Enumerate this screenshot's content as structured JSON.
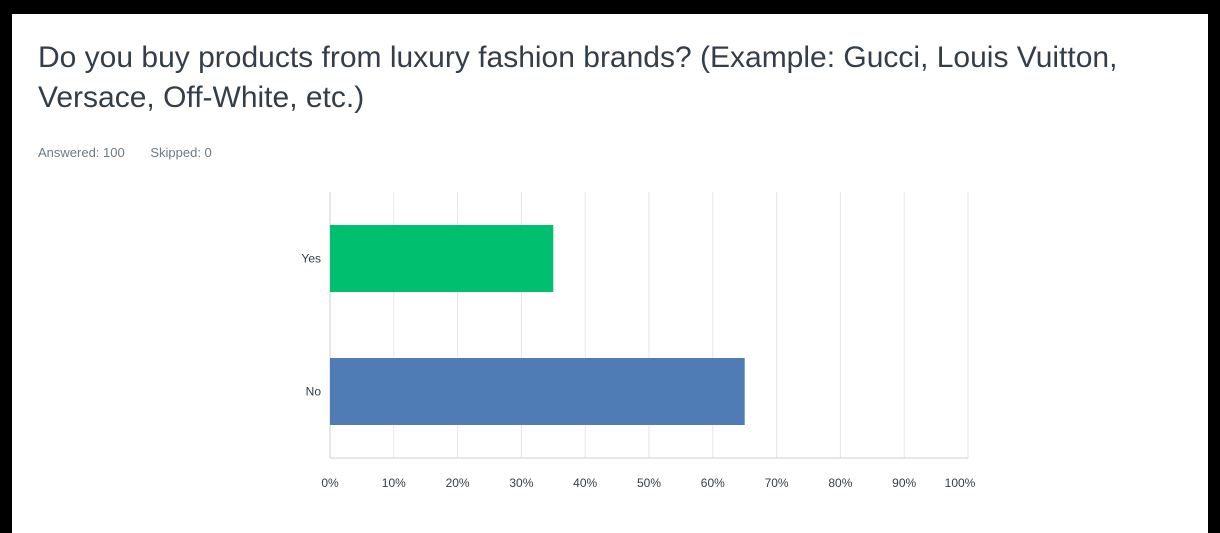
{
  "question": {
    "title": "Do you buy products from luxury fashion brands? (Example: Gucci, Louis Vuitton, Versace, Off-White, etc.)",
    "answered_label": "Answered: 100",
    "skipped_label": "Skipped: 0"
  },
  "colors": {
    "yes_bar": "#00bf6f",
    "no_bar": "#507cb6",
    "grid": "#e6e6e6",
    "axis": "#cfcfcf"
  },
  "chart_data": {
    "type": "bar",
    "orientation": "horizontal",
    "categories": [
      "Yes",
      "No"
    ],
    "values": [
      35,
      65
    ],
    "unit": "%",
    "xlim": [
      0,
      100
    ],
    "x_ticks": [
      "0%",
      "10%",
      "20%",
      "30%",
      "40%",
      "50%",
      "60%",
      "70%",
      "80%",
      "90%",
      "100%"
    ],
    "grid": true,
    "title": "",
    "xlabel": "",
    "ylabel": ""
  }
}
